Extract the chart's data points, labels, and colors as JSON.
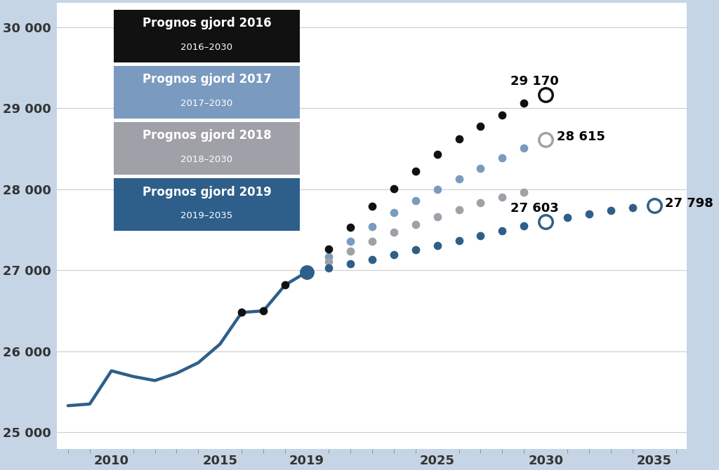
{
  "background_color": "#c5d5e5",
  "plot_bg_color": "#ffffff",
  "ylim": [
    24800,
    30300
  ],
  "xlim": [
    2007.5,
    2036.5
  ],
  "yticks": [
    25000,
    26000,
    27000,
    28000,
    29000,
    30000
  ],
  "ytick_labels": [
    "25 000",
    "26 000",
    "27 000",
    "28 000",
    "29 000",
    "30 000"
  ],
  "xticks": [
    2010,
    2015,
    2019,
    2025,
    2030,
    2035
  ],
  "xtick_labels": [
    "2010",
    "2015",
    "2019",
    "2025",
    "2030",
    "2035"
  ],
  "historical_years": [
    2008,
    2009,
    2010,
    2011,
    2012,
    2013,
    2014,
    2015,
    2016,
    2017,
    2018,
    2019
  ],
  "historical_values": [
    25330,
    25350,
    25760,
    25690,
    25640,
    25730,
    25860,
    26090,
    26480,
    26500,
    26820,
    26980
  ],
  "hist_color": "#2e5f8a",
  "hist_linewidth": 3.2,
  "junction_year": 2019,
  "junction_value": 26980,
  "forecast_2016_pre_years": [
    2016,
    2017,
    2018
  ],
  "forecast_2016_pre_values": [
    26480,
    26500,
    26820
  ],
  "forecast_2016_years": [
    2019,
    2020,
    2021,
    2022,
    2023,
    2024,
    2025,
    2026,
    2027,
    2028,
    2029,
    2030
  ],
  "forecast_2016_values": [
    26980,
    27260,
    27530,
    27790,
    28010,
    28220,
    28430,
    28620,
    28780,
    28920,
    29060,
    29170
  ],
  "forecast_2016_color": "#111111",
  "forecast_2016_end_label": "29 170",
  "forecast_2017_years": [
    2019,
    2020,
    2021,
    2022,
    2023,
    2024,
    2025,
    2026,
    2027,
    2028,
    2029,
    2030
  ],
  "forecast_2017_values": [
    26980,
    27170,
    27360,
    27540,
    27710,
    27860,
    28000,
    28130,
    28260,
    28390,
    28510,
    28615
  ],
  "forecast_2017_color": "#7a9bbf",
  "forecast_2018_years": [
    2019,
    2020,
    2021,
    2022,
    2023,
    2024,
    2025,
    2026,
    2027,
    2028,
    2029,
    2030
  ],
  "forecast_2018_values": [
    26980,
    27110,
    27240,
    27360,
    27470,
    27570,
    27660,
    27750,
    27830,
    27900,
    27960,
    28615
  ],
  "forecast_2018_color": "#a0a0a8",
  "forecast_2018_end_label": "28 615",
  "forecast_2019_years": [
    2019,
    2020,
    2021,
    2022,
    2023,
    2024,
    2025,
    2026,
    2027,
    2028,
    2029,
    2030,
    2031,
    2032,
    2033,
    2034,
    2035
  ],
  "forecast_2019_values": [
    26980,
    27030,
    27080,
    27130,
    27190,
    27250,
    27310,
    27370,
    27430,
    27490,
    27545,
    27603,
    27650,
    27695,
    27735,
    27770,
    27798
  ],
  "forecast_2019_color": "#2e5f8a",
  "forecast_2019_mid_label": "27 603",
  "forecast_2019_end_label": "27 798",
  "dot_size": 55,
  "big_marker_size": 14,
  "legend_boxes": [
    {
      "label": "Prognos gjord 2016",
      "sublabel": "2016–2030",
      "bg": "#111111",
      "text_color": "#ffffff"
    },
    {
      "label": "Prognos gjord 2017",
      "sublabel": "2017–2030",
      "bg": "#7a9bbf",
      "text_color": "#ffffff"
    },
    {
      "label": "Prognos gjord 2018",
      "sublabel": "2018–2030",
      "bg": "#a0a0a8",
      "text_color": "#ffffff"
    },
    {
      "label": "Prognos gjord 2019",
      "sublabel": "2019–2035",
      "bg": "#2e5f8a",
      "text_color": "#ffffff"
    }
  ]
}
